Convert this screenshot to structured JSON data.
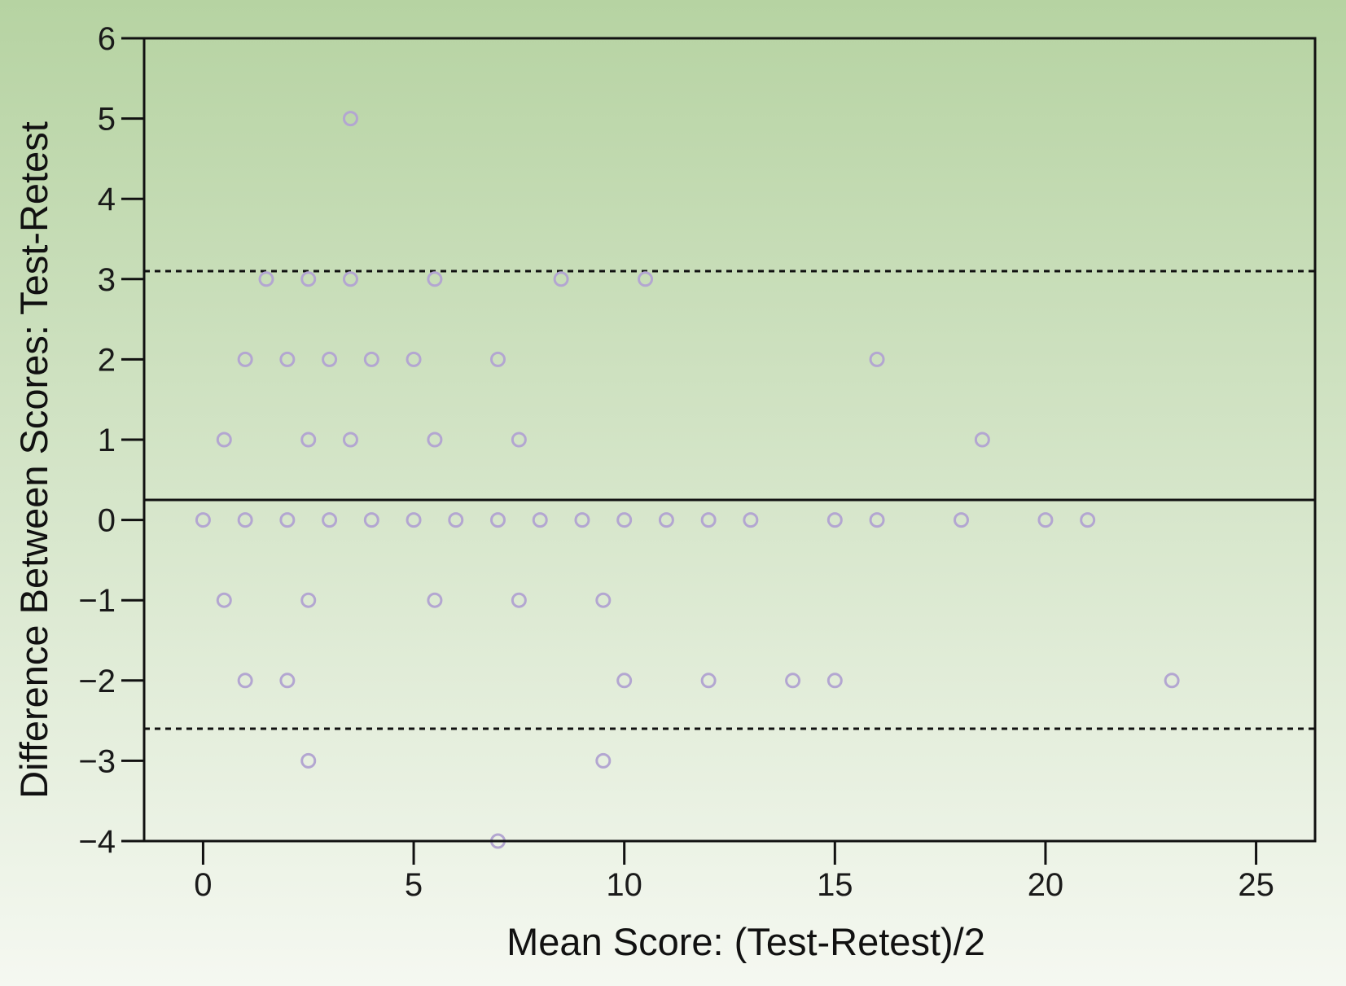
{
  "chart_data": {
    "type": "scatter",
    "title": "",
    "xlabel": "Mean Score: (Test-Retest)/2",
    "ylabel": "Difference Between Scores: Test-Retest",
    "xlim": [
      -1.4,
      26.4
    ],
    "ylim": [
      -4,
      6
    ],
    "xticks": [
      0,
      5,
      10,
      15,
      20,
      25
    ],
    "yticks": [
      6,
      5,
      4,
      3,
      2,
      1,
      0,
      -1,
      -2,
      -3,
      -4
    ],
    "ytick_labels": [
      "6",
      "5",
      "4",
      "3",
      "2",
      "1",
      "0",
      "−1",
      "−2",
      "−3",
      "−4"
    ],
    "grid": false,
    "legend": "none",
    "reference_lines": [
      {
        "y": 3.1,
        "style": "dotted"
      },
      {
        "y": 0.25,
        "style": "solid"
      },
      {
        "y": -2.6,
        "style": "dotted"
      }
    ],
    "series": [
      {
        "marker": "open-circle",
        "color": "#b3a6d1",
        "points": [
          [
            3.5,
            5
          ],
          [
            1.5,
            3
          ],
          [
            2.5,
            3
          ],
          [
            3.5,
            3
          ],
          [
            5.5,
            3
          ],
          [
            8.5,
            3
          ],
          [
            10.5,
            3
          ],
          [
            1,
            2
          ],
          [
            2,
            2
          ],
          [
            3,
            2
          ],
          [
            4,
            2
          ],
          [
            5,
            2
          ],
          [
            7,
            2
          ],
          [
            16,
            2
          ],
          [
            0.5,
            1
          ],
          [
            2.5,
            1
          ],
          [
            3.5,
            1
          ],
          [
            5.5,
            1
          ],
          [
            7.5,
            1
          ],
          [
            18.5,
            1
          ],
          [
            0,
            0
          ],
          [
            1,
            0
          ],
          [
            2,
            0
          ],
          [
            3,
            0
          ],
          [
            4,
            0
          ],
          [
            5,
            0
          ],
          [
            6,
            0
          ],
          [
            7,
            0
          ],
          [
            8,
            0
          ],
          [
            9,
            0
          ],
          [
            10,
            0
          ],
          [
            11,
            0
          ],
          [
            12,
            0
          ],
          [
            13,
            0
          ],
          [
            15,
            0
          ],
          [
            16,
            0
          ],
          [
            18,
            0
          ],
          [
            20,
            0
          ],
          [
            21,
            0
          ],
          [
            0.5,
            -1
          ],
          [
            2.5,
            -1
          ],
          [
            5.5,
            -1
          ],
          [
            7.5,
            -1
          ],
          [
            9.5,
            -1
          ],
          [
            1,
            -2
          ],
          [
            2,
            -2
          ],
          [
            10,
            -2
          ],
          [
            12,
            -2
          ],
          [
            14,
            -2
          ],
          [
            15,
            -2
          ],
          [
            23,
            -2
          ],
          [
            2.5,
            -3
          ],
          [
            9.5,
            -3
          ],
          [
            7,
            -4
          ]
        ]
      }
    ]
  },
  "style": {
    "background_top": "#b6d3a2",
    "background_bottom": "#f5f8f1",
    "page_border": "#c8dcbb",
    "axis_color": "#111111",
    "marker_color": "#b3a6d1"
  }
}
